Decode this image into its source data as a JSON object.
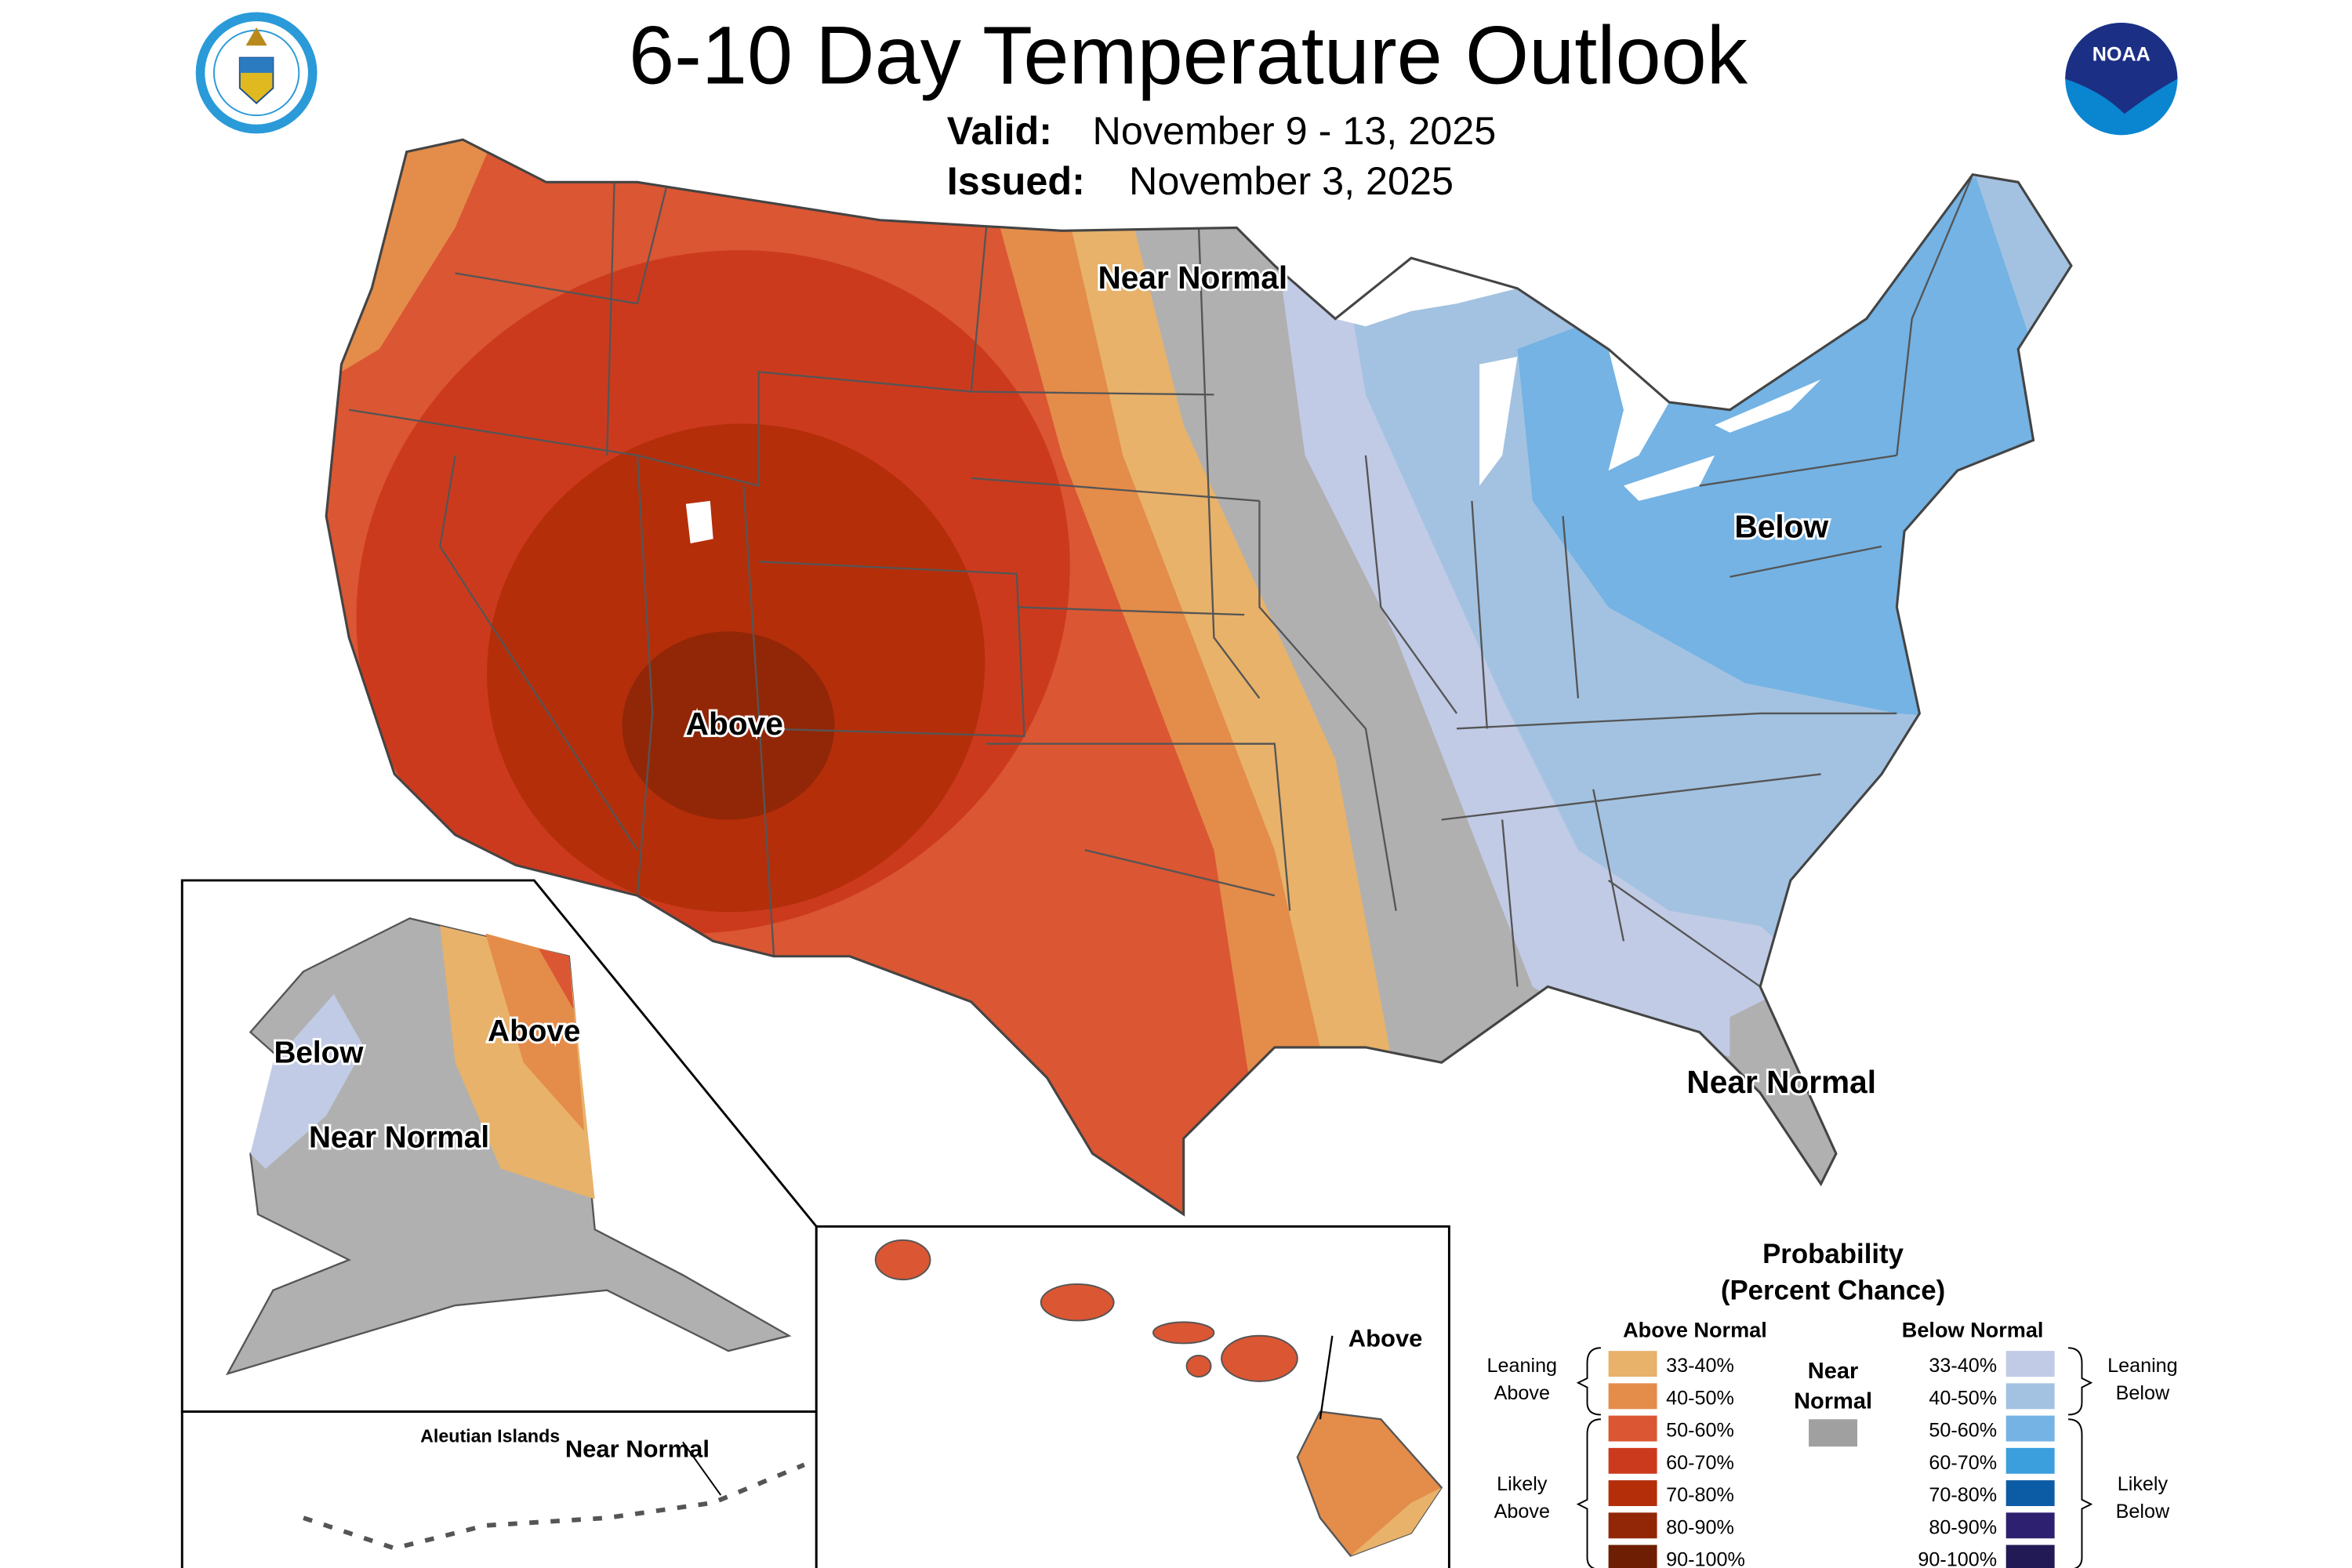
{
  "header": {
    "title": "6-10 Day Temperature Outlook",
    "valid_label": "Valid:",
    "valid_value": "November 9 - 13, 2025",
    "issued_label": "Issued:",
    "issued_value": "November 3, 2025",
    "logo_left": "Department of Commerce seal - United States of America",
    "logo_right": "NOAA"
  },
  "map_labels": {
    "conus_above": "Above",
    "conus_near_normal_north": "Near Normal",
    "conus_below": "Below",
    "florida_near_normal": "Near Normal",
    "alaska_below": "Below",
    "alaska_above": "Above",
    "alaska_near_normal": "Near Normal",
    "aleutian_title": "Aleutian Islands",
    "aleutian_near_normal": "Near Normal",
    "hawaii_above": "Above"
  },
  "legend": {
    "title_line1": "Probability",
    "title_line2": "(Percent Chance)",
    "above_header": "Above Normal",
    "below_header": "Below Normal",
    "near_normal": "Near Normal",
    "near_normal_color": "#A0A0A0",
    "leaning_above": "Leaning Above",
    "likely_above": "Likely Above",
    "leaning_below": "Leaning Below",
    "likely_below": "Likely Below",
    "above": [
      {
        "range": "33-40%",
        "color": "#E8B26A"
      },
      {
        "range": "40-50%",
        "color": "#E48C4A"
      },
      {
        "range": "50-60%",
        "color": "#DB5633"
      },
      {
        "range": "60-70%",
        "color": "#CC3A1E"
      },
      {
        "range": "70-80%",
        "color": "#B42E0A"
      },
      {
        "range": "80-90%",
        "color": "#922708"
      },
      {
        "range": "90-100%",
        "color": "#6E1E03"
      }
    ],
    "below": [
      {
        "range": "33-40%",
        "color": "#C1CBE6"
      },
      {
        "range": "40-50%",
        "color": "#A3C2E1"
      },
      {
        "range": "50-60%",
        "color": "#74B3E4"
      },
      {
        "range": "60-70%",
        "color": "#3B9EDD"
      },
      {
        "range": "70-80%",
        "color": "#0B5CA4"
      },
      {
        "range": "80-90%",
        "color": "#2E2070"
      },
      {
        "range": "90-100%",
        "color": "#221A55"
      }
    ]
  }
}
